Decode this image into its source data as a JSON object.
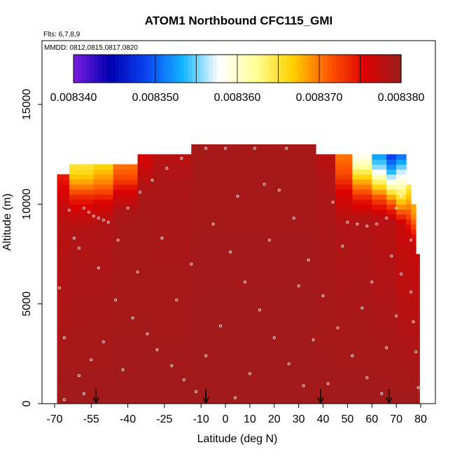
{
  "chart_data": {
    "type": "heatmap",
    "title": "ATOM1 Northbound CFC115_GMI",
    "notes": [
      "Flts: 6,7,8,9",
      "MMDD: 0812,0815,0817,0820"
    ],
    "xlabel": "Latitude (deg N)",
    "ylabel": "Altitude (m)",
    "xlim": [
      -70,
      80
    ],
    "ylim": [
      0,
      18000
    ],
    "x_tick_labels": [
      "-70",
      "-55",
      "-40",
      "-25",
      "-10",
      "0",
      "10",
      "20",
      "30",
      "40",
      "50",
      "60",
      "70",
      "80"
    ],
    "y_tick_labels": [
      "0",
      "5000",
      "10000",
      "15000"
    ],
    "colorbar": {
      "min": 0.00834,
      "max": 0.00838,
      "tick_labels": [
        "0.008340",
        "0.008350",
        "0.008360",
        "0.008370",
        "0.008380"
      ],
      "colors": [
        "#7a1de0",
        "#0000b0",
        "#0a44f0",
        "#12b4ff",
        "#ffffff",
        "#ffff99",
        "#ffd200",
        "#ff5a00",
        "#dd0000",
        "#9a1e1e"
      ]
    },
    "background_value": 0.0083795,
    "field_columns": [
      {
        "lat": [
          -69,
          -64
        ],
        "top": 11500,
        "profile": [
          [
            0,
            0.0083795
          ],
          [
            9200,
            0.008378
          ],
          [
            10000,
            0.008377
          ],
          [
            11000,
            0.008375
          ],
          [
            11500,
            0.008374
          ]
        ]
      },
      {
        "lat": [
          -64,
          -54
        ],
        "top": 12000,
        "profile": [
          [
            0,
            0.0083795
          ],
          [
            8700,
            0.0083785
          ],
          [
            9500,
            0.008377
          ],
          [
            10300,
            0.008374
          ],
          [
            11000,
            0.008369
          ],
          [
            11600,
            0.008366
          ],
          [
            12000,
            0.008365
          ]
        ]
      },
      {
        "lat": [
          -54,
          -46
        ],
        "top": 12000,
        "profile": [
          [
            0,
            0.0083795
          ],
          [
            9000,
            0.0083785
          ],
          [
            10000,
            0.008376
          ],
          [
            11000,
            0.00837
          ],
          [
            12000,
            0.008366
          ]
        ]
      },
      {
        "lat": [
          -46,
          -36
        ],
        "top": 12000,
        "profile": [
          [
            0,
            0.0083795
          ],
          [
            9500,
            0.008379
          ],
          [
            10600,
            0.008376
          ],
          [
            11300,
            0.008372
          ],
          [
            12000,
            0.00837
          ]
        ]
      },
      {
        "lat": [
          -36,
          -30
        ],
        "top": 12500,
        "profile": [
          [
            0,
            0.0083795
          ],
          [
            10500,
            0.008379
          ],
          [
            11800,
            0.008377
          ],
          [
            12500,
            0.008376
          ]
        ]
      },
      {
        "lat": [
          -30,
          -14
        ],
        "top": 12500,
        "profile": [
          [
            0,
            0.0083795
          ],
          [
            11000,
            0.0083788
          ],
          [
            12500,
            0.008378
          ]
        ]
      },
      {
        "lat": [
          -14,
          37
        ],
        "top": 13000,
        "profile": [
          [
            0,
            0.0083795
          ],
          [
            13000,
            0.0083792
          ]
        ]
      },
      {
        "lat": [
          37,
          45
        ],
        "top": 12500,
        "profile": [
          [
            0,
            0.0083795
          ],
          [
            11000,
            0.0083787
          ],
          [
            12500,
            0.008378
          ]
        ]
      },
      {
        "lat": [
          45,
          52
        ],
        "top": 12500,
        "profile": [
          [
            0,
            0.0083795
          ],
          [
            9000,
            0.0083785
          ],
          [
            10500,
            0.008376
          ],
          [
            11500,
            0.008372
          ],
          [
            12500,
            0.00837
          ]
        ]
      },
      {
        "lat": [
          52,
          60
        ],
        "top": 12500,
        "profile": [
          [
            0,
            0.0083795
          ],
          [
            9300,
            0.0083785
          ],
          [
            10300,
            0.008374
          ],
          [
            11300,
            0.008367
          ],
          [
            12000,
            0.008361
          ],
          [
            12500,
            0.008358
          ]
        ]
      },
      {
        "lat": [
          60,
          66
        ],
        "top": 12500,
        "profile": [
          [
            0,
            0.0083795
          ],
          [
            9300,
            0.008378
          ],
          [
            10300,
            0.008372
          ],
          [
            11200,
            0.008363
          ],
          [
            11800,
            0.008356
          ],
          [
            12500,
            0.008352
          ]
        ]
      },
      {
        "lat": [
          66,
          70
        ],
        "top": 12500,
        "profile": [
          [
            0,
            0.0083795
          ],
          [
            9200,
            0.008378
          ],
          [
            10200,
            0.00837
          ],
          [
            11000,
            0.00836
          ],
          [
            11700,
            0.008353
          ],
          [
            12500,
            0.008348
          ]
        ]
      },
      {
        "lat": [
          70,
          74
        ],
        "top": 12500,
        "profile": [
          [
            0,
            0.0083795
          ],
          [
            9000,
            0.008377
          ],
          [
            10000,
            0.008368
          ],
          [
            10900,
            0.008361
          ],
          [
            11600,
            0.008357
          ],
          [
            12500,
            0.00835
          ]
        ]
      },
      {
        "lat": [
          74,
          76
        ],
        "top": 11000,
        "profile": [
          [
            0,
            0.0083795
          ],
          [
            8500,
            0.008377
          ],
          [
            10000,
            0.008369
          ],
          [
            11000,
            0.008364
          ]
        ]
      },
      {
        "lat": [
          76,
          78
        ],
        "top": 10000,
        "profile": [
          [
            0,
            0.0083795
          ],
          [
            8000,
            0.008377
          ],
          [
            9500,
            0.008369
          ],
          [
            10000,
            0.008368
          ]
        ]
      },
      {
        "lat": [
          78,
          79.5
        ],
        "top": 7500,
        "profile": [
          [
            0,
            0.0083795
          ],
          [
            7500,
            0.008377
          ]
        ]
      }
    ],
    "sample_points": [
      {
        "lat": -58,
        "alt": 9800
      },
      {
        "lat": -56,
        "alt": 9600
      },
      {
        "lat": -54,
        "alt": 9400
      },
      {
        "lat": -52,
        "alt": 9300
      },
      {
        "lat": -50,
        "alt": 9200
      },
      {
        "lat": -48,
        "alt": 9100
      },
      {
        "lat": -62,
        "alt": 8300
      },
      {
        "lat": -60,
        "alt": 7800
      },
      {
        "lat": -52,
        "alt": 6800
      },
      {
        "lat": -45,
        "alt": 5200
      },
      {
        "lat": -38,
        "alt": 4300
      },
      {
        "lat": -32,
        "alt": 3500
      },
      {
        "lat": -28,
        "alt": 2700
      },
      {
        "lat": -22,
        "alt": 1900
      },
      {
        "lat": -17,
        "alt": 1200
      },
      {
        "lat": -12,
        "alt": 600
      },
      {
        "lat": -66,
        "alt": 200
      },
      {
        "lat": -60,
        "alt": 1400
      },
      {
        "lat": -55,
        "alt": 2200
      },
      {
        "lat": -50,
        "alt": 3100
      },
      {
        "lat": -44,
        "alt": 8200
      },
      {
        "lat": -40,
        "alt": 9800
      },
      {
        "lat": -35,
        "alt": 10600
      },
      {
        "lat": -30,
        "alt": 11200
      },
      {
        "lat": -24,
        "alt": 11800
      },
      {
        "lat": -18,
        "alt": 12300
      },
      {
        "lat": -8,
        "alt": 12800
      },
      {
        "lat": 0,
        "alt": 12800
      },
      {
        "lat": 12,
        "alt": 12800
      },
      {
        "lat": 25,
        "alt": 12800
      },
      {
        "lat": 38,
        "alt": 12600
      },
      {
        "lat": -5,
        "alt": 9000
      },
      {
        "lat": 2,
        "alt": 7600
      },
      {
        "lat": 8,
        "alt": 6100
      },
      {
        "lat": 14,
        "alt": 4700
      },
      {
        "lat": 20,
        "alt": 3300
      },
      {
        "lat": 26,
        "alt": 2000
      },
      {
        "lat": 32,
        "alt": 900
      },
      {
        "lat": 5,
        "alt": 10400
      },
      {
        "lat": 16,
        "alt": 11000
      },
      {
        "lat": 22,
        "alt": 10700
      },
      {
        "lat": 28,
        "alt": 9300
      },
      {
        "lat": 34,
        "alt": 7200
      },
      {
        "lat": 40,
        "alt": 5400
      },
      {
        "lat": 46,
        "alt": 3800
      },
      {
        "lat": 52,
        "alt": 2400
      },
      {
        "lat": 58,
        "alt": 1300
      },
      {
        "lat": 64,
        "alt": 500
      },
      {
        "lat": 50,
        "alt": 9100
      },
      {
        "lat": 54,
        "alt": 9000
      },
      {
        "lat": 58,
        "alt": 8900
      },
      {
        "lat": 62,
        "alt": 9000
      },
      {
        "lat": 66,
        "alt": 9300
      },
      {
        "lat": 70,
        "alt": 9800
      },
      {
        "lat": 72,
        "alt": 10400
      },
      {
        "lat": 74,
        "alt": 11000
      },
      {
        "lat": 75,
        "alt": 11600
      },
      {
        "lat": 75,
        "alt": 12000
      },
      {
        "lat": 76,
        "alt": 8200
      },
      {
        "lat": 76,
        "alt": 5600
      },
      {
        "lat": 77,
        "alt": 4100
      },
      {
        "lat": 78,
        "alt": 2600
      },
      {
        "lat": 79,
        "alt": 800
      },
      {
        "lat": 72,
        "alt": 6500
      },
      {
        "lat": 68,
        "alt": 7400
      },
      {
        "lat": 60,
        "alt": 6100
      },
      {
        "lat": 56,
        "alt": 4800
      },
      {
        "lat": -68,
        "alt": 5800
      },
      {
        "lat": -66,
        "alt": 3300
      },
      {
        "lat": -64,
        "alt": 9700
      },
      {
        "lat": -36,
        "alt": 6600
      },
      {
        "lat": -26,
        "alt": 8300
      },
      {
        "lat": -20,
        "alt": 5200
      },
      {
        "lat": -14,
        "alt": 7000
      },
      {
        "lat": -2,
        "alt": 3900
      },
      {
        "lat": 10,
        "alt": 1500
      },
      {
        "lat": 18,
        "alt": 8200
      },
      {
        "lat": 30,
        "alt": 5900
      },
      {
        "lat": 36,
        "alt": 3200
      },
      {
        "lat": 44,
        "alt": 10100
      },
      {
        "lat": 48,
        "alt": 7900
      },
      {
        "lat": 42,
        "alt": 1000
      },
      {
        "lat": -42,
        "alt": 1700
      },
      {
        "lat": -8,
        "alt": 2400
      },
      {
        "lat": 4,
        "alt": 300
      },
      {
        "lat": 66,
        "alt": 2800
      },
      {
        "lat": 70,
        "alt": 4400
      },
      {
        "lat": -58,
        "alt": 500
      }
    ],
    "flight_markers_lat": [
      -53,
      -8,
      39,
      67
    ],
    "grid": false,
    "legend": "colorbar inside plot, top"
  }
}
